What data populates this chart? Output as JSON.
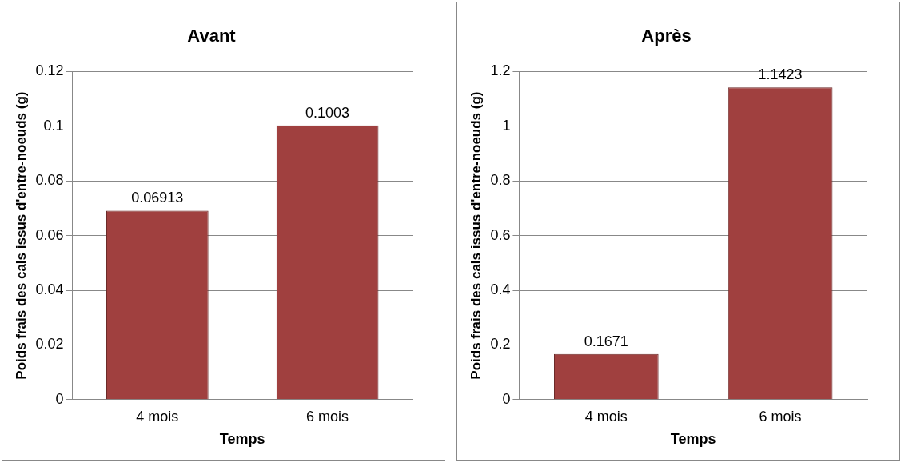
{
  "chart_data": [
    {
      "type": "bar",
      "title": "Avant",
      "xlabel": "Temps",
      "ylabel": "Poids frais des cals issus d'entre-noeuds (g)",
      "categories": [
        "4 mois",
        "6 mois"
      ],
      "values": [
        0.06913,
        0.1003
      ],
      "color": "#a0403f",
      "ylim": [
        0,
        0.12
      ],
      "yticks": [
        0,
        0.02,
        0.04,
        0.06,
        0.08,
        0.1,
        0.12
      ],
      "grid": "y",
      "data_labels": true
    },
    {
      "type": "bar",
      "title": "Après",
      "xlabel": "Temps",
      "ylabel": "Poids frais des cals issus d'entre-noeuds (g)",
      "categories": [
        "4 mois",
        "6 mois"
      ],
      "values": [
        0.1671,
        1.1423
      ],
      "color": "#a0403f",
      "ylim": [
        0,
        1.2
      ],
      "yticks": [
        0,
        0.2,
        0.4,
        0.6,
        0.8,
        1,
        1.2
      ],
      "grid": "y",
      "data_labels": true
    }
  ]
}
